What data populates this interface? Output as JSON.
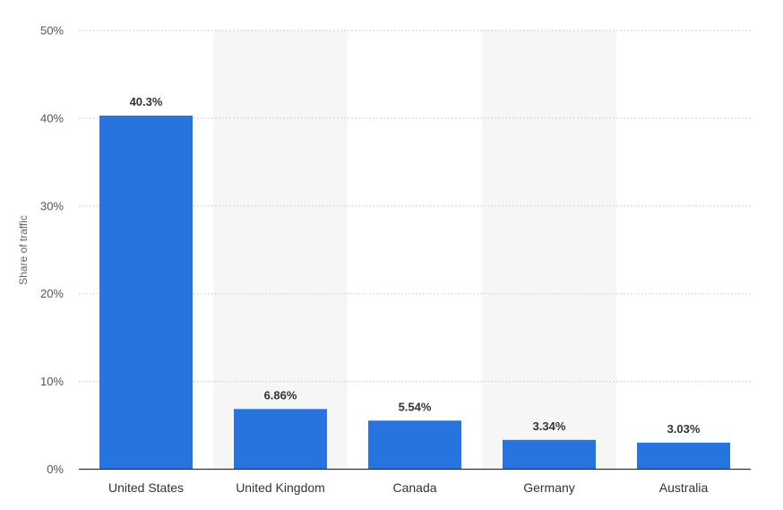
{
  "chart_data": {
    "type": "bar",
    "categories": [
      "United States",
      "United Kingdom",
      "Canada",
      "Germany",
      "Australia"
    ],
    "values": [
      40.3,
      6.86,
      5.54,
      3.34,
      3.03
    ],
    "data_labels": [
      "40.3%",
      "6.86%",
      "5.54%",
      "3.34%",
      "3.03%"
    ],
    "ylabel": "Share of traffic",
    "ylim": [
      0,
      50
    ],
    "yticks": [
      0,
      10,
      20,
      30,
      40,
      50
    ],
    "ytick_labels": [
      "0%",
      "10%",
      "20%",
      "30%",
      "40%",
      "50%"
    ],
    "grid": true,
    "alternating_bands": true,
    "bar_color": "#2874df",
    "band_color": "#f6f6f6"
  }
}
